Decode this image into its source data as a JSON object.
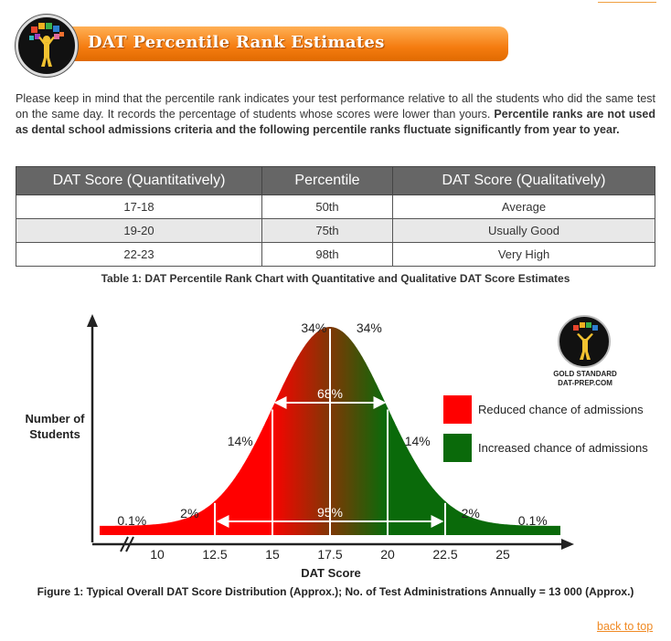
{
  "header": {
    "title": "DAT Percentile Rank Estimates"
  },
  "intro": {
    "normal": "Please keep in mind that the percentile rank indicates your test performance relative to all the students who did the same test on the same day. It records the percentage of students whose scores were lower than yours. ",
    "bold": "Percentile ranks are not used as dental school admissions criteria and the following percentile ranks fluctuate significantly from year to year."
  },
  "table": {
    "headers": [
      "DAT Score (Quantitatively)",
      "Percentile",
      "DAT Score (Qualitatively)"
    ],
    "rows": [
      [
        "17-18",
        "50th",
        "Average"
      ],
      [
        "19-20",
        "75th",
        "Usually Good"
      ],
      [
        "22-23",
        "98th",
        "Very High"
      ]
    ],
    "caption": "Table 1: DAT Percentile Rank Chart with Quantitative and Qualitative DAT Score Estimates"
  },
  "chart_data": {
    "type": "area",
    "title": "",
    "xlabel": "DAT Score",
    "ylabel": "Number of Students",
    "x_ticks": [
      "10",
      "12.5",
      "15",
      "17.5",
      "20",
      "22.5",
      "25"
    ],
    "segments": [
      {
        "from": 7.5,
        "to": 10,
        "label": "0.1%"
      },
      {
        "from": 10,
        "to": 12.5,
        "label": "2%"
      },
      {
        "from": 12.5,
        "to": 15,
        "label": "14%"
      },
      {
        "from": 15,
        "to": 17.5,
        "label": "34%"
      },
      {
        "from": 17.5,
        "to": 20,
        "label": "34%"
      },
      {
        "from": 20,
        "to": 22.5,
        "label": "14%"
      },
      {
        "from": 22.5,
        "to": 25,
        "label": "2%"
      },
      {
        "from": 25,
        "to": 27.5,
        "label": "0.1%"
      }
    ],
    "ranges": [
      {
        "from": 15,
        "to": 20,
        "label": "68%"
      },
      {
        "from": 12.5,
        "to": 22.5,
        "label": "95%"
      }
    ],
    "legend": [
      {
        "label": "Reduced chance of admissions",
        "color": "#ff0000"
      },
      {
        "label": "Increased chance of admissions",
        "color": "#0a6a0a"
      }
    ],
    "legend_position": "right",
    "logo_text": [
      "GOLD STANDARD",
      "DAT-PREP.COM"
    ]
  },
  "figure": {
    "caption": "Figure 1: Typical Overall DAT Score Distribution (Approx.); No. of Test Administrations Annually = 13 000 (Approx.)"
  },
  "footer": {
    "back_to_top": "back to top"
  }
}
